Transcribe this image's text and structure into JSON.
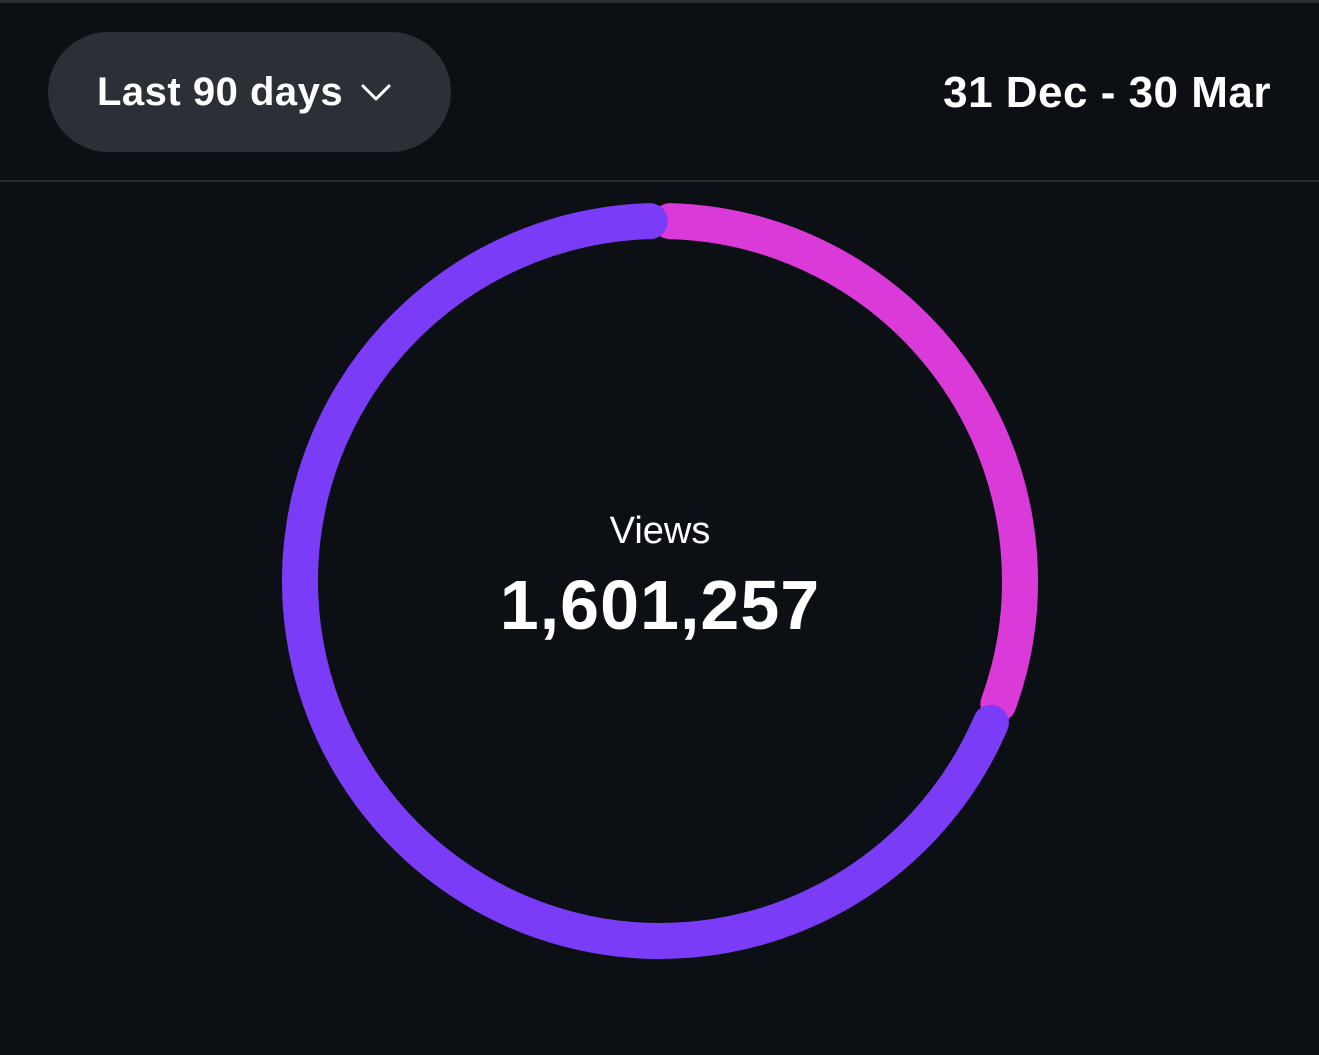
{
  "filter": {
    "selected": "Last 90 days",
    "chevron_icon": "chevron-down-icon"
  },
  "date_range": "31 Dec - 30 Mar",
  "summary": {
    "label": "Views",
    "value": "1,601,257"
  },
  "chart_data": {
    "type": "pie",
    "variant": "donut",
    "title": "",
    "segments": [
      {
        "share": 0.31,
        "color": "#d93ad8"
      },
      {
        "share": 0.69,
        "color": "#7b3cf7"
      }
    ],
    "start_angle_deg": 0,
    "direction": "clockwise"
  }
}
